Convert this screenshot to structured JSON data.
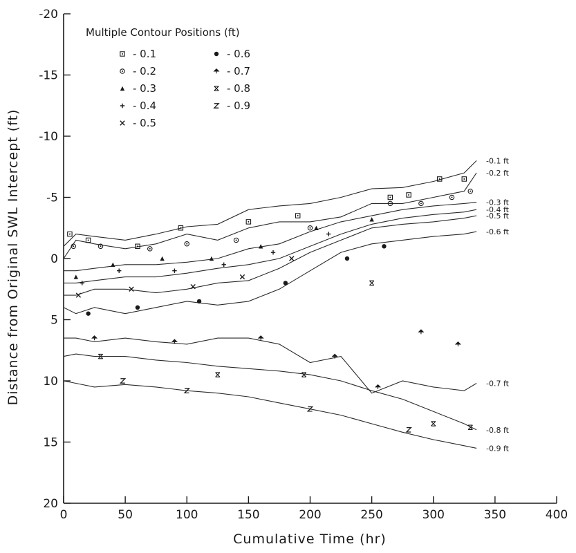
{
  "chart_data": {
    "type": "line",
    "xlabel": "Cumulative Time (hr)",
    "ylabel": "Distance from Original SWL Intercept (ft)",
    "xlim": [
      0,
      400
    ],
    "ylim": [
      -20,
      20
    ],
    "y_inverted": true,
    "x_ticks": [
      0,
      50,
      100,
      150,
      200,
      250,
      300,
      350,
      400
    ],
    "y_ticks": [
      -20,
      -15,
      -10,
      -5,
      0,
      5,
      10,
      15,
      20
    ],
    "grid": false,
    "legend": {
      "title": "Multiple Contour Positions (ft)",
      "position": "top-left",
      "entries": [
        {
          "label": "- 0.1",
          "marker": "square-dot"
        },
        {
          "label": "- 0.2",
          "marker": "circle-dot"
        },
        {
          "label": "- 0.3",
          "marker": "triangle"
        },
        {
          "label": "- 0.4",
          "marker": "plus"
        },
        {
          "label": "- 0.5",
          "marker": "cross"
        },
        {
          "label": "- 0.6",
          "marker": "filled-circle"
        },
        {
          "label": "- 0.7",
          "marker": "arrow-up"
        },
        {
          "label": "- 0.8",
          "marker": "x-bar"
        },
        {
          "label": "- 0.9",
          "marker": "z"
        }
      ]
    },
    "series": [
      {
        "name": "-0.1 ft",
        "end_label": "-0.1 ft",
        "x": [
          0,
          10,
          25,
          50,
          75,
          100,
          125,
          150,
          175,
          200,
          225,
          250,
          275,
          300,
          325,
          335
        ],
        "y": [
          -1,
          -2,
          -1.8,
          -1.5,
          -2,
          -2.6,
          -2.8,
          -4,
          -4.3,
          -4.5,
          -5,
          -5.7,
          -5.8,
          -6.3,
          -7,
          -8
        ]
      },
      {
        "name": "-0.2 ft",
        "end_label": "-0.2 ft",
        "x": [
          0,
          10,
          25,
          50,
          75,
          100,
          125,
          150,
          175,
          200,
          225,
          250,
          275,
          300,
          325,
          335
        ],
        "y": [
          0,
          -1.5,
          -1.2,
          -0.8,
          -1.2,
          -2,
          -1.5,
          -2.5,
          -3,
          -3,
          -3.4,
          -4.5,
          -4.5,
          -5,
          -5.5,
          -7
        ]
      },
      {
        "name": "-0.3 ft",
        "end_label": "-0.3 ft",
        "x": [
          0,
          10,
          25,
          50,
          75,
          100,
          125,
          150,
          175,
          200,
          225,
          250,
          275,
          300,
          325,
          335
        ],
        "y": [
          1,
          1,
          0.8,
          0.5,
          0.5,
          0.3,
          0,
          -0.8,
          -1.2,
          -2.2,
          -3,
          -3.5,
          -4,
          -4.3,
          -4.5,
          -4.6
        ]
      },
      {
        "name": "-0.4 ft",
        "end_label": "-0.4 ft",
        "x": [
          0,
          10,
          25,
          50,
          75,
          100,
          125,
          150,
          175,
          200,
          225,
          250,
          275,
          300,
          325,
          335
        ],
        "y": [
          2,
          2,
          1.8,
          1.5,
          1.5,
          1.2,
          0.8,
          0.5,
          0,
          -1,
          -2,
          -2.8,
          -3.3,
          -3.6,
          -3.8,
          -4
        ]
      },
      {
        "name": "-0.5 ft",
        "end_label": "-0.5 ft",
        "x": [
          0,
          10,
          25,
          50,
          75,
          100,
          125,
          150,
          175,
          200,
          225,
          250,
          275,
          300,
          325,
          335
        ],
        "y": [
          3,
          3,
          2.5,
          2.5,
          2.8,
          2.5,
          2,
          1.8,
          0.8,
          -0.5,
          -1.5,
          -2.5,
          -2.8,
          -3,
          -3.3,
          -3.5
        ]
      },
      {
        "name": "-0.6 ft",
        "end_label": "-0.6 ft",
        "x": [
          0,
          10,
          25,
          50,
          75,
          100,
          125,
          150,
          175,
          200,
          225,
          250,
          275,
          300,
          325,
          335
        ],
        "y": [
          4,
          4.5,
          4,
          4.5,
          4,
          3.5,
          3.8,
          3.5,
          2.5,
          1,
          -0.5,
          -1.2,
          -1.5,
          -1.8,
          -2,
          -2.2
        ]
      },
      {
        "name": "-0.7 ft",
        "end_label": "-0.7 ft",
        "x": [
          0,
          10,
          25,
          50,
          75,
          100,
          125,
          150,
          175,
          200,
          225,
          250,
          275,
          300,
          325,
          335
        ],
        "y": [
          6.5,
          6.5,
          6.8,
          6.5,
          6.8,
          7,
          6.5,
          6.5,
          7,
          8.5,
          8,
          11,
          10,
          10.5,
          10.8,
          10.2
        ]
      },
      {
        "name": "-0.8 ft",
        "end_label": "-0.8 ft",
        "x": [
          0,
          10,
          25,
          50,
          75,
          100,
          125,
          150,
          175,
          200,
          225,
          250,
          275,
          300,
          325,
          335
        ],
        "y": [
          8,
          7.8,
          8,
          8,
          8.3,
          8.5,
          8.8,
          9,
          9.2,
          9.5,
          10,
          10.8,
          11.5,
          12.5,
          13.5,
          14
        ]
      },
      {
        "name": "-0.9 ft",
        "end_label": "-0.9 ft",
        "x": [
          0,
          10,
          25,
          50,
          75,
          100,
          125,
          150,
          175,
          200,
          225,
          250,
          275,
          300,
          325,
          335
        ],
        "y": [
          10,
          10.2,
          10.5,
          10.3,
          10.5,
          10.8,
          11,
          11.3,
          11.8,
          12.3,
          12.8,
          13.5,
          14.2,
          14.8,
          15.3,
          15.5
        ]
      }
    ],
    "scatter_points": [
      {
        "s": 0,
        "pts": [
          [
            5,
            -2
          ],
          [
            20,
            -1.5
          ],
          [
            60,
            -1
          ],
          [
            95,
            -2.5
          ],
          [
            150,
            -3
          ],
          [
            190,
            -3.5
          ],
          [
            265,
            -5
          ],
          [
            280,
            -5.2
          ],
          [
            305,
            -6.5
          ],
          [
            325,
            -6.5
          ]
        ]
      },
      {
        "s": 1,
        "pts": [
          [
            8,
            -1
          ],
          [
            30,
            -1
          ],
          [
            70,
            -0.8
          ],
          [
            100,
            -1.2
          ],
          [
            140,
            -1.5
          ],
          [
            200,
            -2.5
          ],
          [
            265,
            -4.5
          ],
          [
            290,
            -4.5
          ],
          [
            315,
            -5
          ],
          [
            330,
            -5.5
          ]
        ]
      },
      {
        "s": 2,
        "pts": [
          [
            10,
            1.5
          ],
          [
            40,
            0.5
          ],
          [
            80,
            0
          ],
          [
            120,
            0
          ],
          [
            160,
            -1
          ],
          [
            205,
            -2.5
          ],
          [
            250,
            -3.2
          ]
        ]
      },
      {
        "s": 3,
        "pts": [
          [
            15,
            2
          ],
          [
            45,
            1
          ],
          [
            90,
            1
          ],
          [
            130,
            0.5
          ],
          [
            170,
            -0.5
          ],
          [
            215,
            -2
          ]
        ]
      },
      {
        "s": 4,
        "pts": [
          [
            12,
            3
          ],
          [
            55,
            2.5
          ],
          [
            105,
            2.3
          ],
          [
            145,
            1.5
          ],
          [
            185,
            0
          ]
        ]
      },
      {
        "s": 5,
        "pts": [
          [
            20,
            4.5
          ],
          [
            60,
            4
          ],
          [
            110,
            3.5
          ],
          [
            180,
            2
          ],
          [
            230,
            0
          ],
          [
            260,
            -1
          ]
        ]
      },
      {
        "s": 6,
        "pts": [
          [
            25,
            6.5
          ],
          [
            90,
            6.8
          ],
          [
            160,
            6.5
          ],
          [
            220,
            8
          ],
          [
            255,
            10.5
          ],
          [
            290,
            6
          ],
          [
            320,
            7
          ]
        ]
      },
      {
        "s": 7,
        "pts": [
          [
            30,
            8
          ],
          [
            125,
            9.5
          ],
          [
            195,
            9.5
          ],
          [
            250,
            2
          ],
          [
            300,
            13.5
          ],
          [
            330,
            13.8
          ]
        ]
      },
      {
        "s": 8,
        "pts": [
          [
            48,
            10
          ],
          [
            100,
            10.8
          ],
          [
            200,
            12.3
          ],
          [
            280,
            14
          ]
        ]
      }
    ]
  }
}
